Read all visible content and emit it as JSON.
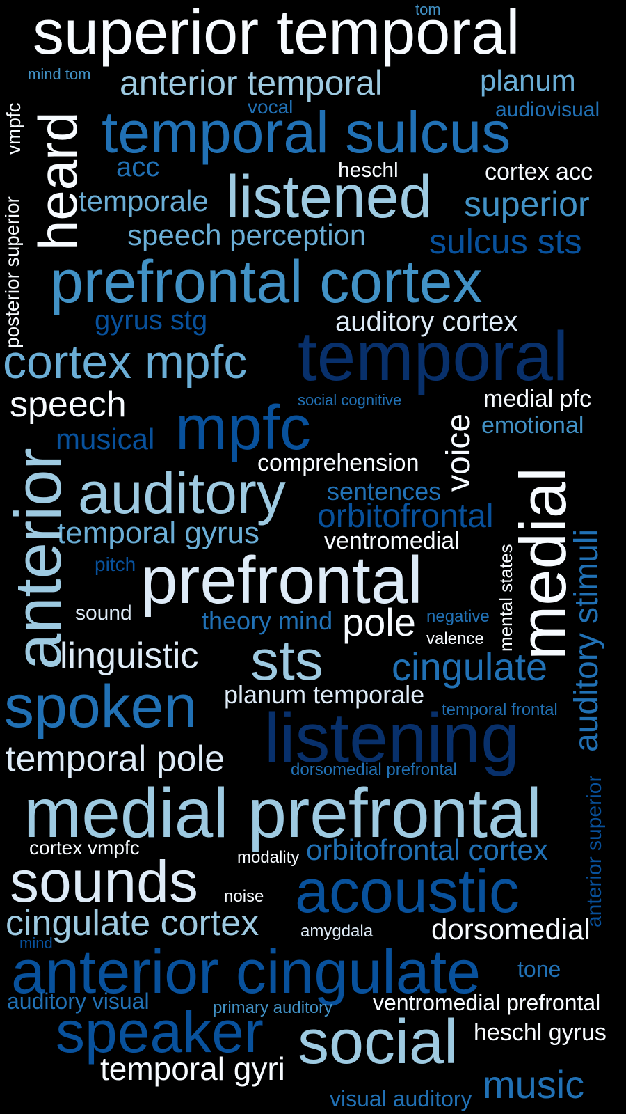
{
  "palette": {
    "background": "#000000",
    "white": "#f7fbff",
    "pale": "#deebf7",
    "light": "#9ecae1",
    "sky": "#6baed6",
    "mid": "#4292c6",
    "blue": "#2171b5",
    "deep": "#08519c",
    "navy": "#08306b"
  },
  "words": [
    {
      "text": "superior temporal",
      "color": "white"
    },
    {
      "text": "tom",
      "color": "mid"
    },
    {
      "text": "mind tom",
      "color": "mid"
    },
    {
      "text": "anterior temporal",
      "color": "light"
    },
    {
      "text": "planum",
      "color": "sky"
    },
    {
      "text": "vmpfc",
      "color": "white"
    },
    {
      "text": "heard",
      "color": "white"
    },
    {
      "text": "vocal",
      "color": "blue"
    },
    {
      "text": "audiovisual",
      "color": "blue"
    },
    {
      "text": "temporal sulcus",
      "color": "blue"
    },
    {
      "text": "acc",
      "color": "blue"
    },
    {
      "text": "heschl",
      "color": "white"
    },
    {
      "text": "cortex acc",
      "color": "white"
    },
    {
      "text": "temporale",
      "color": "sky"
    },
    {
      "text": "listened",
      "color": "light"
    },
    {
      "text": "superior",
      "color": "mid"
    },
    {
      "text": "posterior superior",
      "color": "white"
    },
    {
      "text": "speech perception",
      "color": "sky"
    },
    {
      "text": "sulcus sts",
      "color": "deep"
    },
    {
      "text": "prefrontal cortex",
      "color": "mid"
    },
    {
      "text": "gyrus stg",
      "color": "deep"
    },
    {
      "text": "auditory cortex",
      "color": "pale"
    },
    {
      "text": "cortex mpfc",
      "color": "sky"
    },
    {
      "text": "temporal",
      "color": "navy"
    },
    {
      "text": "speech",
      "color": "white"
    },
    {
      "text": "social cognitive",
      "color": "blue"
    },
    {
      "text": "medial pfc",
      "color": "white"
    },
    {
      "text": "voice",
      "color": "white"
    },
    {
      "text": "musical",
      "color": "deep"
    },
    {
      "text": "mpfc",
      "color": "deep"
    },
    {
      "text": "emotional",
      "color": "mid"
    },
    {
      "text": "anterior",
      "color": "light"
    },
    {
      "text": "medial",
      "color": "white"
    },
    {
      "text": "comprehension",
      "color": "white"
    },
    {
      "text": "auditory",
      "color": "light"
    },
    {
      "text": "sentences",
      "color": "blue"
    },
    {
      "text": "orbitofrontal",
      "color": "deep"
    },
    {
      "text": "auditory stimuli",
      "color": "blue"
    },
    {
      "text": "temporal gyrus",
      "color": "sky"
    },
    {
      "text": "ventromedial",
      "color": "white"
    },
    {
      "text": "mental states",
      "color": "white"
    },
    {
      "text": "pitch",
      "color": "deep"
    },
    {
      "text": "prefrontal",
      "color": "pale"
    },
    {
      "text": "sound",
      "color": "pale"
    },
    {
      "text": "theory mind",
      "color": "blue"
    },
    {
      "text": "pole",
      "color": "white"
    },
    {
      "text": "negative",
      "color": "blue"
    },
    {
      "text": "valence",
      "color": "white"
    },
    {
      "text": "linguistic",
      "color": "pale"
    },
    {
      "text": "sts",
      "color": "light"
    },
    {
      "text": "cingulate",
      "color": "blue"
    },
    {
      "text": "spoken",
      "color": "blue"
    },
    {
      "text": "planum temporale",
      "color": "pale"
    },
    {
      "text": "temporal frontal",
      "color": "blue"
    },
    {
      "text": "listening",
      "color": "navy"
    },
    {
      "text": "temporal pole",
      "color": "pale"
    },
    {
      "text": "dorsomedial prefrontal",
      "color": "blue"
    },
    {
      "text": "anterior superior",
      "color": "deep"
    },
    {
      "text": "medial prefrontal",
      "color": "light"
    },
    {
      "text": "cortex vmpfc",
      "color": "white"
    },
    {
      "text": "modality",
      "color": "white"
    },
    {
      "text": "orbitofrontal cortex",
      "color": "blue"
    },
    {
      "text": "sounds",
      "color": "pale"
    },
    {
      "text": "noise",
      "color": "white"
    },
    {
      "text": "acoustic",
      "color": "deep"
    },
    {
      "text": "cingulate cortex",
      "color": "light"
    },
    {
      "text": "amygdala",
      "color": "pale"
    },
    {
      "text": "dorsomedial",
      "color": "white"
    },
    {
      "text": "mind",
      "color": "deep"
    },
    {
      "text": "anterior cingulate",
      "color": "deep"
    },
    {
      "text": "tone",
      "color": "blue"
    },
    {
      "text": "auditory visual",
      "color": "blue"
    },
    {
      "text": "primary auditory",
      "color": "mid"
    },
    {
      "text": "ventromedial prefrontal",
      "color": "white"
    },
    {
      "text": "speaker",
      "color": "deep"
    },
    {
      "text": "social",
      "color": "light"
    },
    {
      "text": "heschl gyrus",
      "color": "white"
    },
    {
      "text": "temporal gyri",
      "color": "white"
    },
    {
      "text": "visual auditory",
      "color": "blue"
    },
    {
      "text": "music",
      "color": "blue"
    }
  ]
}
